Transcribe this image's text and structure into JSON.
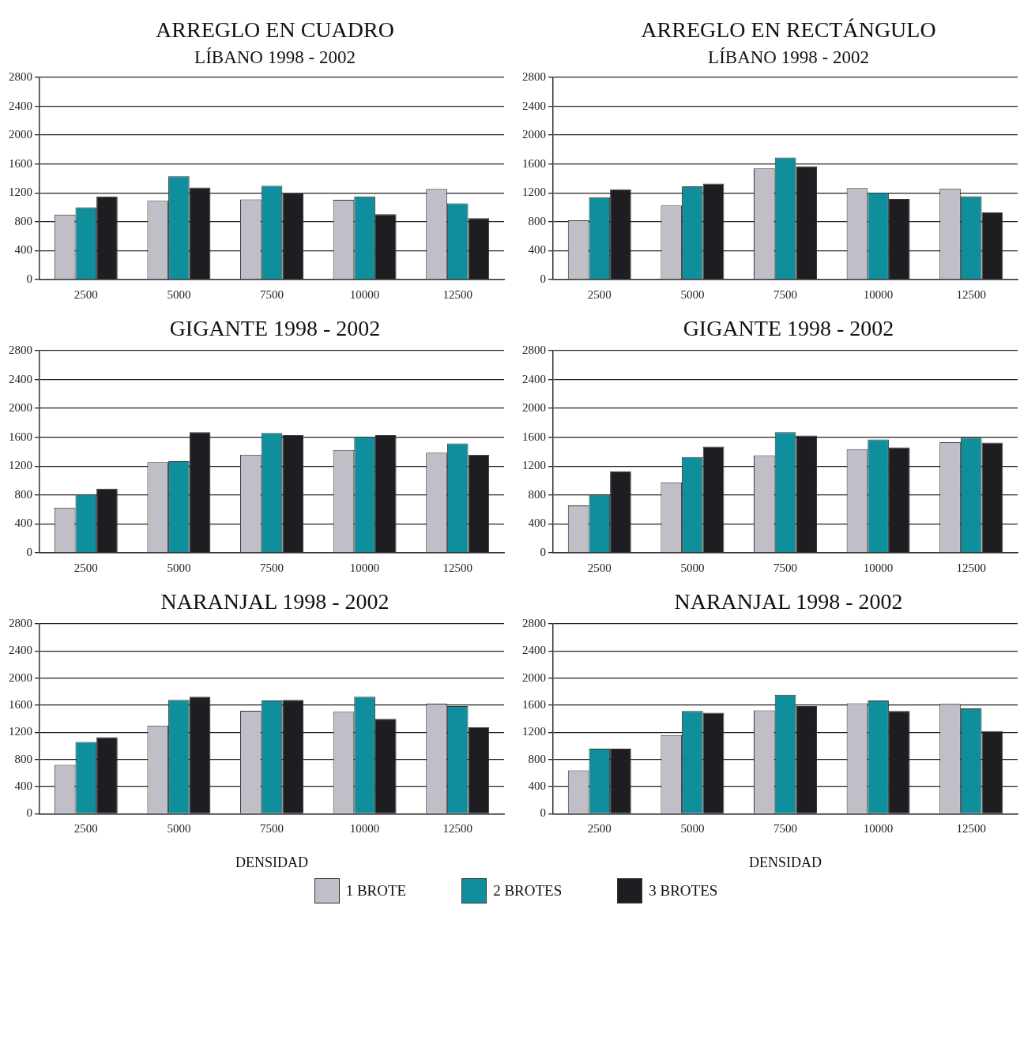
{
  "chart_data": [
    {
      "type": "bar",
      "title": "ARREGLO EN CUADRO",
      "subtitle": "LÍBANO 1998 - 2002",
      "categories": [
        "2500",
        "5000",
        "7500",
        "10000",
        "12500"
      ],
      "ylim": [
        0,
        2800
      ],
      "yticks": [
        0,
        400,
        800,
        1200,
        1600,
        2000,
        2400,
        2800
      ],
      "grid": "y",
      "legend": false,
      "series": [
        {
          "color": "#c2bec8",
          "values": [
            900,
            1090,
            1110,
            1105,
            1255
          ]
        },
        {
          "color": "#0f8e9c",
          "values": [
            1000,
            1430,
            1300,
            1150,
            1055
          ]
        },
        {
          "color": "#1e1e22",
          "values": [
            1150,
            1275,
            1200,
            905,
            850
          ]
        }
      ]
    },
    {
      "type": "bar",
      "title": "ARREGLO EN RECTÁNGULO",
      "subtitle": "LÍBANO 1998 - 2002",
      "categories": [
        "2500",
        "5000",
        "7500",
        "10000",
        "12500"
      ],
      "ylim": [
        0,
        2800
      ],
      "yticks": [
        0,
        400,
        800,
        1200,
        1600,
        2000,
        2400,
        2800
      ],
      "grid": "y",
      "legend": false,
      "series": [
        {
          "color": "#c2bec8",
          "values": [
            820,
            1025,
            1540,
            1265,
            1260
          ]
        },
        {
          "color": "#0f8e9c",
          "values": [
            1140,
            1290,
            1690,
            1205,
            1155
          ]
        },
        {
          "color": "#1e1e22",
          "values": [
            1250,
            1330,
            1570,
            1115,
            930
          ]
        }
      ]
    },
    {
      "type": "bar",
      "title": "GIGANTE 1998 - 2002",
      "categories": [
        "2500",
        "5000",
        "7500",
        "10000",
        "12500"
      ],
      "ylim": [
        0,
        2800
      ],
      "yticks": [
        0,
        400,
        800,
        1200,
        1600,
        2000,
        2400,
        2800
      ],
      "grid": "y",
      "legend": false,
      "series": [
        {
          "color": "#c2bec8",
          "values": [
            625,
            1255,
            1360,
            1425,
            1385
          ]
        },
        {
          "color": "#0f8e9c",
          "values": [
            810,
            1270,
            1660,
            1610,
            1515
          ]
        },
        {
          "color": "#1e1e22",
          "values": [
            890,
            1670,
            1630,
            1630,
            1360
          ]
        }
      ]
    },
    {
      "type": "bar",
      "title": "GIGANTE 1998 - 2002",
      "categories": [
        "2500",
        "5000",
        "7500",
        "10000",
        "12500"
      ],
      "ylim": [
        0,
        2800
      ],
      "yticks": [
        0,
        400,
        800,
        1200,
        1600,
        2000,
        2400,
        2800
      ],
      "grid": "y",
      "legend": false,
      "series": [
        {
          "color": "#c2bec8",
          "values": [
            655,
            975,
            1350,
            1435,
            1530
          ]
        },
        {
          "color": "#0f8e9c",
          "values": [
            805,
            1325,
            1670,
            1570,
            1595
          ]
        },
        {
          "color": "#1e1e22",
          "values": [
            1130,
            1470,
            1625,
            1460,
            1525
          ]
        }
      ]
    },
    {
      "type": "bar",
      "title": "NARANJAL 1998 - 2002",
      "xlabel": "DENSIDAD",
      "categories": [
        "2500",
        "5000",
        "7500",
        "10000",
        "12500"
      ],
      "ylim": [
        0,
        2800
      ],
      "yticks": [
        0,
        400,
        800,
        1200,
        1600,
        2000,
        2400,
        2800
      ],
      "grid": "y",
      "legend": "bottom",
      "series": [
        {
          "name": "1 BROTE",
          "color": "#c2bec8",
          "values": [
            720,
            1300,
            1520,
            1505,
            1625
          ]
        },
        {
          "name": "2 BROTES",
          "color": "#0f8e9c",
          "values": [
            1060,
            1680,
            1670,
            1725,
            1590
          ]
        },
        {
          "name": "3 BROTES",
          "color": "#1e1e22",
          "values": [
            1130,
            1725,
            1680,
            1400,
            1275
          ]
        }
      ]
    },
    {
      "type": "bar",
      "title": "NARANJAL 1998 - 2002",
      "xlabel": "DENSIDAD",
      "categories": [
        "2500",
        "5000",
        "7500",
        "10000",
        "12500"
      ],
      "ylim": [
        0,
        2800
      ],
      "yticks": [
        0,
        400,
        800,
        1200,
        1600,
        2000,
        2400,
        2800
      ],
      "grid": "y",
      "legend": false,
      "series": [
        {
          "color": "#c2bec8",
          "values": [
            640,
            1160,
            1525,
            1630,
            1620
          ]
        },
        {
          "color": "#0f8e9c",
          "values": [
            960,
            1515,
            1755,
            1670,
            1555
          ]
        },
        {
          "color": "#1e1e22",
          "values": [
            960,
            1490,
            1590,
            1515,
            1220
          ]
        }
      ]
    }
  ]
}
